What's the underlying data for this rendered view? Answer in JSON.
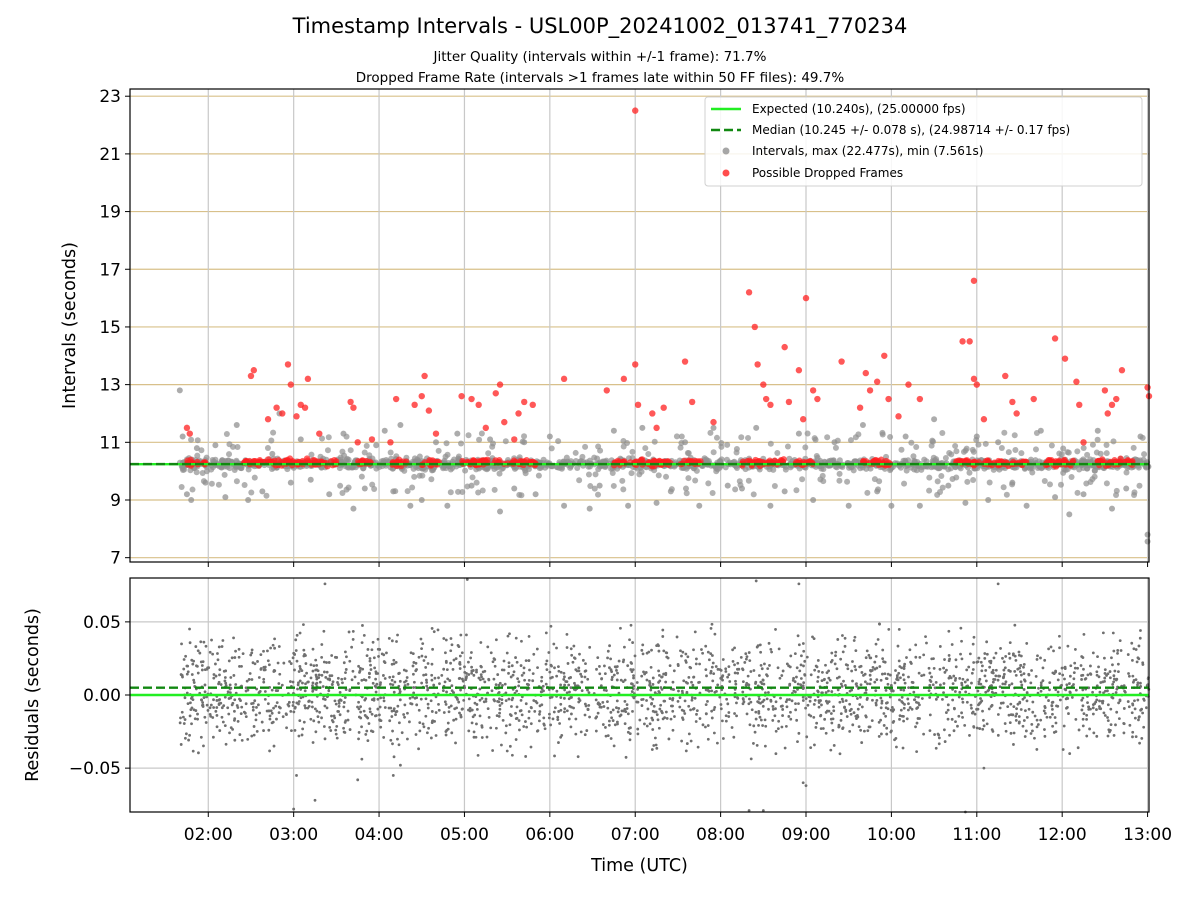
{
  "chart_data": [
    {
      "type": "scatter",
      "panel": "intervals",
      "title": "Timestamp Intervals - USL00P_20241002_013741_770234",
      "subtitle_1": "Jitter Quality (intervals within +/-1 frame): 71.7%",
      "subtitle_2": "Dropped Frame Rate (intervals >1 frames late within 50 FF files): 49.7%",
      "xlabel": "",
      "ylabel": "Intervals (seconds)",
      "x_range": [
        "01:05",
        "13:01"
      ],
      "ylim": [
        6.85,
        23.25
      ],
      "yticks": [
        "7",
        "9",
        "11",
        "13",
        "15",
        "17",
        "19",
        "21",
        "23"
      ],
      "grid": true,
      "legend_position": "top-right",
      "colors": {
        "expected": "#22ee22",
        "median": "#118811",
        "intervals": "#909090",
        "dropped": "#ff2020",
        "hgrid": "#d8c08a",
        "vgrid": "#c8c8c8"
      },
      "series": [
        {
          "name": "Expected (10.240s), (25.00000 fps)",
          "type": "hline",
          "y": 10.24
        },
        {
          "name": "Median (10.245 +/- 0.078 s), (24.98714 +/- 0.17 fps)",
          "type": "hline",
          "y": 10.245
        },
        {
          "name": "Intervals, max (22.477s), min (7.561s)",
          "type": "scatter",
          "max": 22.477,
          "min": 7.561,
          "points": [
            [
              "01:40",
              12.8
            ],
            [
              "01:42",
              11.2
            ],
            [
              "01:45",
              9.2
            ],
            [
              "01:48",
              9.0
            ],
            [
              "01:52",
              10.8
            ],
            [
              "01:58",
              9.6
            ],
            [
              "02:05",
              10.9
            ],
            [
              "02:12",
              9.1
            ],
            [
              "02:20",
              11.6
            ],
            [
              "02:28",
              9.0
            ],
            [
              "02:38",
              9.3
            ],
            [
              "02:45",
              10.6
            ],
            [
              "02:50",
              12.0
            ],
            [
              "02:58",
              9.6
            ],
            [
              "03:05",
              11.1
            ],
            [
              "03:12",
              9.7
            ],
            [
              "03:25",
              9.2
            ],
            [
              "03:35",
              11.3
            ],
            [
              "03:42",
              8.7
            ],
            [
              "03:50",
              9.4
            ],
            [
              "03:58",
              10.9
            ],
            [
              "04:04",
              11.4
            ],
            [
              "04:10",
              9.3
            ],
            [
              "04:15",
              11.6
            ],
            [
              "04:22",
              8.8
            ],
            [
              "04:30",
              9.0
            ],
            [
              "04:40",
              11.0
            ],
            [
              "04:48",
              8.8
            ],
            [
              "04:55",
              11.3
            ],
            [
              "05:05",
              9.5
            ],
            [
              "05:18",
              11.1
            ],
            [
              "05:25",
              8.6
            ],
            [
              "05:35",
              9.4
            ],
            [
              "05:42",
              11.0
            ],
            [
              "05:50",
              9.2
            ],
            [
              "06:00",
              11.2
            ],
            [
              "06:10",
              8.8
            ],
            [
              "06:28",
              8.7
            ],
            [
              "06:35",
              9.5
            ],
            [
              "06:45",
              11.4
            ],
            [
              "06:55",
              8.8
            ],
            [
              "07:05",
              11.5
            ],
            [
              "07:15",
              8.9
            ],
            [
              "07:25",
              9.3
            ],
            [
              "07:35",
              11.0
            ],
            [
              "07:45",
              8.8
            ],
            [
              "07:55",
              11.5
            ],
            [
              "08:05",
              9.5
            ],
            [
              "08:15",
              9.4
            ],
            [
              "08:25",
              11.5
            ],
            [
              "08:35",
              8.8
            ],
            [
              "08:45",
              9.3
            ],
            [
              "08:55",
              11.3
            ],
            [
              "09:05",
              9.0
            ],
            [
              "09:20",
              11.0
            ],
            [
              "09:30",
              8.8
            ],
            [
              "09:40",
              11.6
            ],
            [
              "09:50",
              9.3
            ],
            [
              "10:00",
              8.8
            ],
            [
              "10:10",
              11.2
            ],
            [
              "10:20",
              8.8
            ],
            [
              "10:30",
              11.8
            ],
            [
              "10:40",
              9.5
            ],
            [
              "10:52",
              8.9
            ],
            [
              "11:00",
              11.2
            ],
            [
              "11:08",
              9.0
            ],
            [
              "11:15",
              11.0
            ],
            [
              "11:25",
              9.6
            ],
            [
              "11:35",
              8.8
            ],
            [
              "11:45",
              11.4
            ],
            [
              "11:55",
              9.1
            ],
            [
              "12:05",
              8.5
            ],
            [
              "12:15",
              9.2
            ],
            [
              "12:25",
              11.4
            ],
            [
              "12:35",
              8.7
            ],
            [
              "12:45",
              9.4
            ],
            [
              "12:55",
              11.2
            ],
            [
              "13:00",
              7.8
            ],
            [
              "13:00",
              7.561
            ]
          ]
        },
        {
          "name": "Possible Dropped Frames",
          "type": "scatter",
          "points": [
            [
              "01:45",
              11.5
            ],
            [
              "01:47",
              11.3
            ],
            [
              "02:30",
              13.3
            ],
            [
              "02:32",
              13.5
            ],
            [
              "02:42",
              11.8
            ],
            [
              "02:48",
              12.2
            ],
            [
              "02:52",
              12.0
            ],
            [
              "02:56",
              13.7
            ],
            [
              "02:58",
              13.0
            ],
            [
              "03:02",
              11.9
            ],
            [
              "03:05",
              12.3
            ],
            [
              "03:08",
              12.2
            ],
            [
              "03:10",
              13.2
            ],
            [
              "03:18",
              11.3
            ],
            [
              "03:40",
              12.4
            ],
            [
              "03:42",
              12.2
            ],
            [
              "03:45",
              11.0
            ],
            [
              "03:55",
              11.1
            ],
            [
              "04:08",
              11.0
            ],
            [
              "04:12",
              12.5
            ],
            [
              "04:25",
              12.3
            ],
            [
              "04:30",
              12.6
            ],
            [
              "04:32",
              13.3
            ],
            [
              "04:35",
              12.1
            ],
            [
              "04:40",
              11.3
            ],
            [
              "04:58",
              12.6
            ],
            [
              "05:05",
              12.5
            ],
            [
              "05:10",
              12.3
            ],
            [
              "05:15",
              11.5
            ],
            [
              "05:22",
              12.7
            ],
            [
              "05:25",
              13.0
            ],
            [
              "05:28",
              11.7
            ],
            [
              "05:35",
              11.1
            ],
            [
              "05:38",
              12.0
            ],
            [
              "05:42",
              12.4
            ],
            [
              "05:48",
              12.3
            ],
            [
              "06:10",
              13.2
            ],
            [
              "06:40",
              12.8
            ],
            [
              "06:52",
              13.2
            ],
            [
              "07:00",
              13.7
            ],
            [
              "07:02",
              12.3
            ],
            [
              "07:00",
              22.5
            ],
            [
              "07:12",
              12.0
            ],
            [
              "07:15",
              11.5
            ],
            [
              "07:20",
              12.2
            ],
            [
              "07:35",
              13.8
            ],
            [
              "07:40",
              12.4
            ],
            [
              "07:55",
              11.7
            ],
            [
              "08:20",
              16.2
            ],
            [
              "08:24",
              15.0
            ],
            [
              "08:26",
              13.7
            ],
            [
              "08:30",
              13.0
            ],
            [
              "08:32",
              12.5
            ],
            [
              "08:35",
              12.3
            ],
            [
              "08:45",
              14.3
            ],
            [
              "08:48",
              12.4
            ],
            [
              "08:55",
              13.5
            ],
            [
              "08:58",
              11.8
            ],
            [
              "09:00",
              16.0
            ],
            [
              "09:05",
              12.8
            ],
            [
              "09:08",
              12.5
            ],
            [
              "09:25",
              13.8
            ],
            [
              "09:38",
              12.2
            ],
            [
              "09:42",
              13.4
            ],
            [
              "09:45",
              12.8
            ],
            [
              "09:50",
              13.1
            ],
            [
              "09:55",
              14.0
            ],
            [
              "09:58",
              12.5
            ],
            [
              "10:05",
              11.9
            ],
            [
              "10:12",
              13.0
            ],
            [
              "10:20",
              12.5
            ],
            [
              "10:50",
              14.5
            ],
            [
              "10:55",
              14.5
            ],
            [
              "10:58",
              16.6
            ],
            [
              "10:58",
              13.2
            ],
            [
              "11:00",
              13.0
            ],
            [
              "11:05",
              11.8
            ],
            [
              "11:20",
              13.3
            ],
            [
              "11:25",
              12.4
            ],
            [
              "11:28",
              12.0
            ],
            [
              "11:40",
              12.5
            ],
            [
              "11:55",
              14.6
            ],
            [
              "12:02",
              13.9
            ],
            [
              "12:10",
              13.1
            ],
            [
              "12:12",
              12.3
            ],
            [
              "12:15",
              11.0
            ],
            [
              "12:30",
              12.8
            ],
            [
              "12:32",
              12.0
            ],
            [
              "12:35",
              12.3
            ],
            [
              "12:38",
              12.5
            ],
            [
              "12:42",
              13.5
            ],
            [
              "13:00",
              12.9
            ],
            [
              "13:01",
              12.6
            ]
          ]
        }
      ]
    },
    {
      "type": "scatter",
      "panel": "residuals",
      "xlabel": "Time (UTC)",
      "ylabel": "Residuals (seconds)",
      "x_range": [
        "01:05",
        "13:01"
      ],
      "ylim": [
        -0.08,
        0.08
      ],
      "yticks": [
        "−0.05",
        "0.00",
        "0.05"
      ],
      "xticks": [
        "02:00",
        "03:00",
        "04:00",
        "05:00",
        "06:00",
        "07:00",
        "08:00",
        "09:00",
        "10:00",
        "11:00",
        "12:00",
        "13:00"
      ],
      "grid": true,
      "series": [
        {
          "type": "hline",
          "y": 0.0
        },
        {
          "type": "hline",
          "y": 0.005
        },
        {
          "type": "scatter",
          "color": "#707070",
          "y_spread": [
            -0.045,
            0.05
          ],
          "outliers": [
            [
              "03:00",
              -0.078
            ],
            [
              "03:02",
              -0.055
            ],
            [
              "03:15",
              -0.072
            ],
            [
              "03:22",
              0.076
            ],
            [
              "03:45",
              -0.058
            ],
            [
              "04:10",
              -0.055
            ],
            [
              "04:15",
              -0.048
            ],
            [
              "05:02",
              0.079
            ],
            [
              "08:20",
              -0.079
            ],
            [
              "08:25",
              0.078
            ],
            [
              "08:30",
              -0.079
            ],
            [
              "08:55",
              0.076
            ],
            [
              "08:58",
              -0.06
            ],
            [
              "09:00",
              -0.062
            ],
            [
              "10:52",
              -0.08
            ],
            [
              "11:05",
              -0.05
            ],
            [
              "11:15",
              0.076
            ]
          ]
        }
      ]
    }
  ]
}
